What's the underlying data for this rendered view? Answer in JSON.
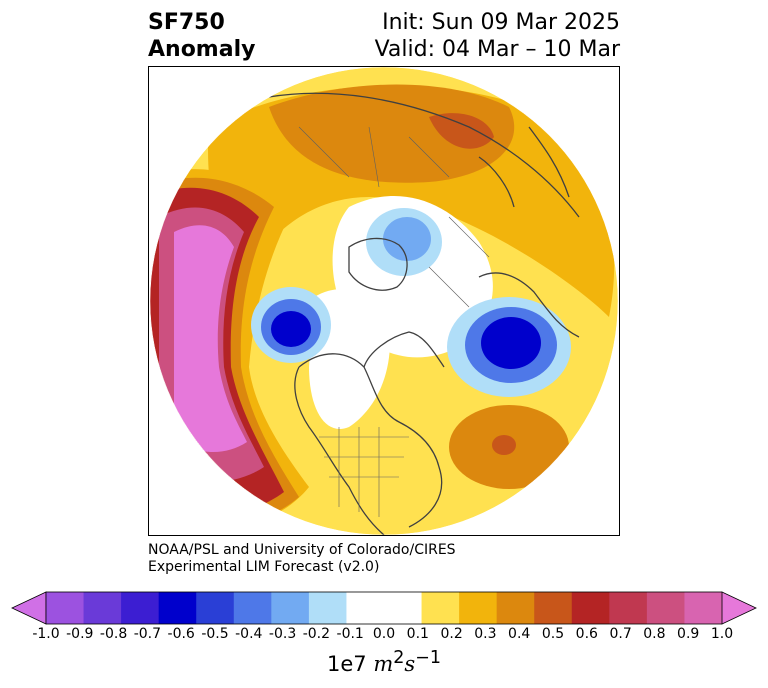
{
  "title": {
    "left_line1": "SF750",
    "left_line2": "Anomaly",
    "right_line1": "Init: Sun 09 Mar 2025",
    "right_line2": "Valid: 04 Mar – 10 Mar"
  },
  "credit": {
    "line1": "NOAA/PSL and University of Colorado/CIRES",
    "line2": "Experimental LIM Forecast (v2.0)"
  },
  "colorbar": {
    "ticks": [
      "-1.0",
      "-0.9",
      "-0.8",
      "-0.7",
      "-0.6",
      "-0.5",
      "-0.4",
      "-0.3",
      "-0.2",
      "-0.1",
      "0.0",
      "0.1",
      "0.2",
      "0.3",
      "0.4",
      "0.5",
      "0.6",
      "0.7",
      "0.8",
      "0.9",
      "1.0"
    ],
    "colors": [
      "#d070e6",
      "#9c52e0",
      "#6a3ad8",
      "#3c1ed2",
      "#0000cc",
      "#2a3fd6",
      "#4e78e8",
      "#72aaf2",
      "#b0def8",
      "#ffffff",
      "#ffffff",
      "#ffe150",
      "#f2b40c",
      "#dc880e",
      "#c8561a",
      "#b42424",
      "#c03850",
      "#cc5080",
      "#d864b0",
      "#e678da"
    ],
    "unit_prefix": "1e7 ",
    "unit_var": "m",
    "unit_sup1": "2",
    "unit_var2": "s",
    "unit_sup2": "−1"
  },
  "map": {
    "projection": "north polar stereographic",
    "field": "streamfunction anomaly at 750 hPa",
    "colors": {
      "ocean_bg": "#ffffff",
      "coast": "#404040"
    }
  }
}
